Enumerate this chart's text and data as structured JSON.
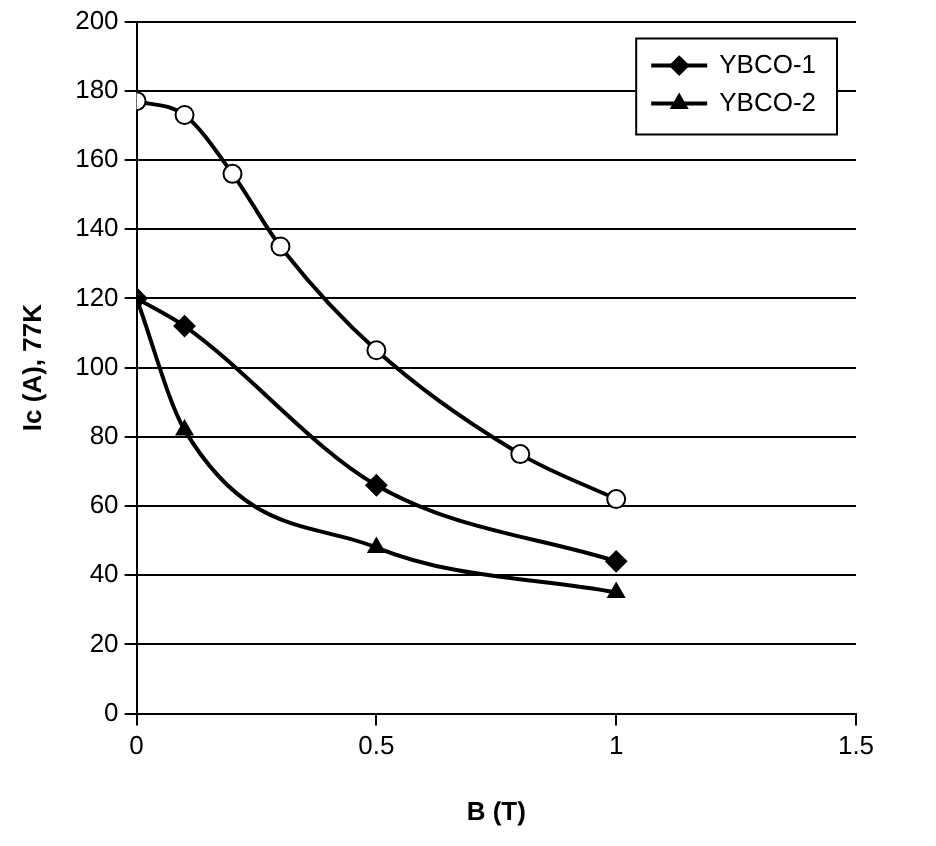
{
  "chart_data": {
    "type": "line",
    "xlabel": "B (T)",
    "ylabel": "Ic (A), 77K",
    "xlim": [
      0,
      1.5
    ],
    "xticks": [
      0,
      0.5,
      1,
      1.5
    ],
    "ylim": [
      0,
      200
    ],
    "yticks": [
      0,
      20,
      40,
      60,
      80,
      100,
      120,
      140,
      160,
      180,
      200
    ],
    "grid": "y",
    "legend": "top right",
    "series": [
      {
        "color": "#000000",
        "marker": "circle",
        "x": [
          0,
          0.1,
          0.2,
          0.3,
          0.5,
          0.8,
          1
        ],
        "values": [
          177,
          173,
          156,
          135,
          105,
          75,
          62
        ]
      },
      {
        "name": "YBCO-1",
        "color": "#000000",
        "marker": "diamond",
        "x": [
          0,
          0.1,
          0.5,
          1
        ],
        "values": [
          120,
          112,
          66,
          44
        ]
      },
      {
        "name": "YBCO-2",
        "color": "#000000",
        "marker": "triangle",
        "x": [
          0,
          0.1,
          0.5,
          1
        ],
        "values": [
          120,
          82,
          48,
          35
        ]
      }
    ]
  }
}
